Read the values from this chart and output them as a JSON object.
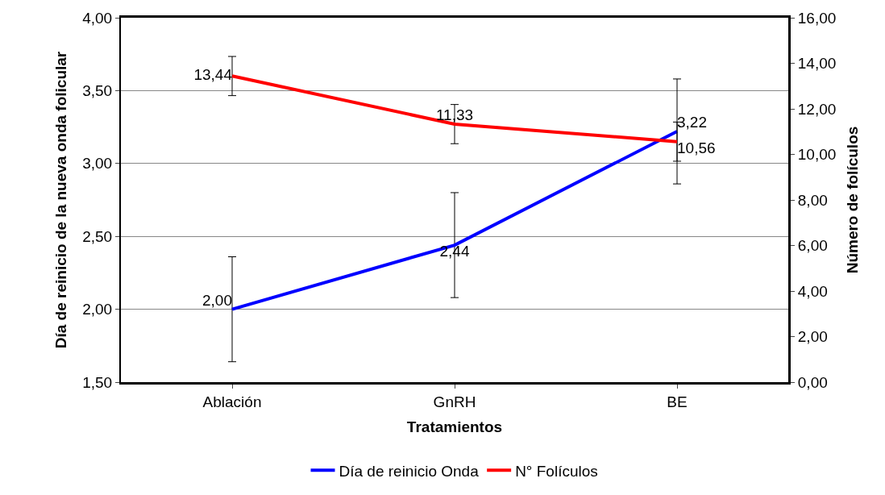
{
  "chart_data": {
    "type": "line",
    "xlabel": "Tratamientos",
    "ylabel": "Día de reinicio de la nueva onda folicular",
    "y2label": "Número de folículos",
    "categories": [
      "Ablación",
      "GnRH",
      "BE"
    ],
    "series": [
      {
        "name": "Día de reinicio Onda",
        "color": "#0000ff",
        "values": [
          2.0,
          2.44,
          3.22
        ],
        "errors": [
          0.36,
          0.36,
          0.36
        ],
        "value_labels": [
          "2,00",
          "2,44",
          "3,22"
        ]
      },
      {
        "name": "N° Folículos",
        "color": "#ff0000",
        "values": [
          13.44,
          11.33,
          10.56
        ],
        "errors": [
          0.86,
          0.86,
          0.86
        ],
        "value_labels": [
          "13,44",
          "11,33",
          "10,56"
        ],
        "axis": "y2"
      }
    ],
    "ylim": [
      1.5,
      4.0
    ],
    "yticks": [
      {
        "value": 1.5,
        "label": "1,50"
      },
      {
        "value": 2.0,
        "label": "2,00"
      },
      {
        "value": 2.5,
        "label": "2,50"
      },
      {
        "value": 3.0,
        "label": "3,00"
      },
      {
        "value": 3.5,
        "label": "3,50"
      },
      {
        "value": 4.0,
        "label": "4,00"
      }
    ],
    "y2lim": [
      0,
      16
    ],
    "y2ticks": [
      {
        "value": 0,
        "label": "0,00"
      },
      {
        "value": 2,
        "label": "2,00"
      },
      {
        "value": 4,
        "label": "4,00"
      },
      {
        "value": 6,
        "label": "6,00"
      },
      {
        "value": 8,
        "label": "8,00"
      },
      {
        "value": 10,
        "label": "10,00"
      },
      {
        "value": 12,
        "label": "12,00"
      },
      {
        "value": 14,
        "label": "14,00"
      },
      {
        "value": 16,
        "label": "16,00"
      }
    ],
    "grid": "y",
    "legend": "bottom",
    "marker": "none",
    "line_style": "solid"
  }
}
